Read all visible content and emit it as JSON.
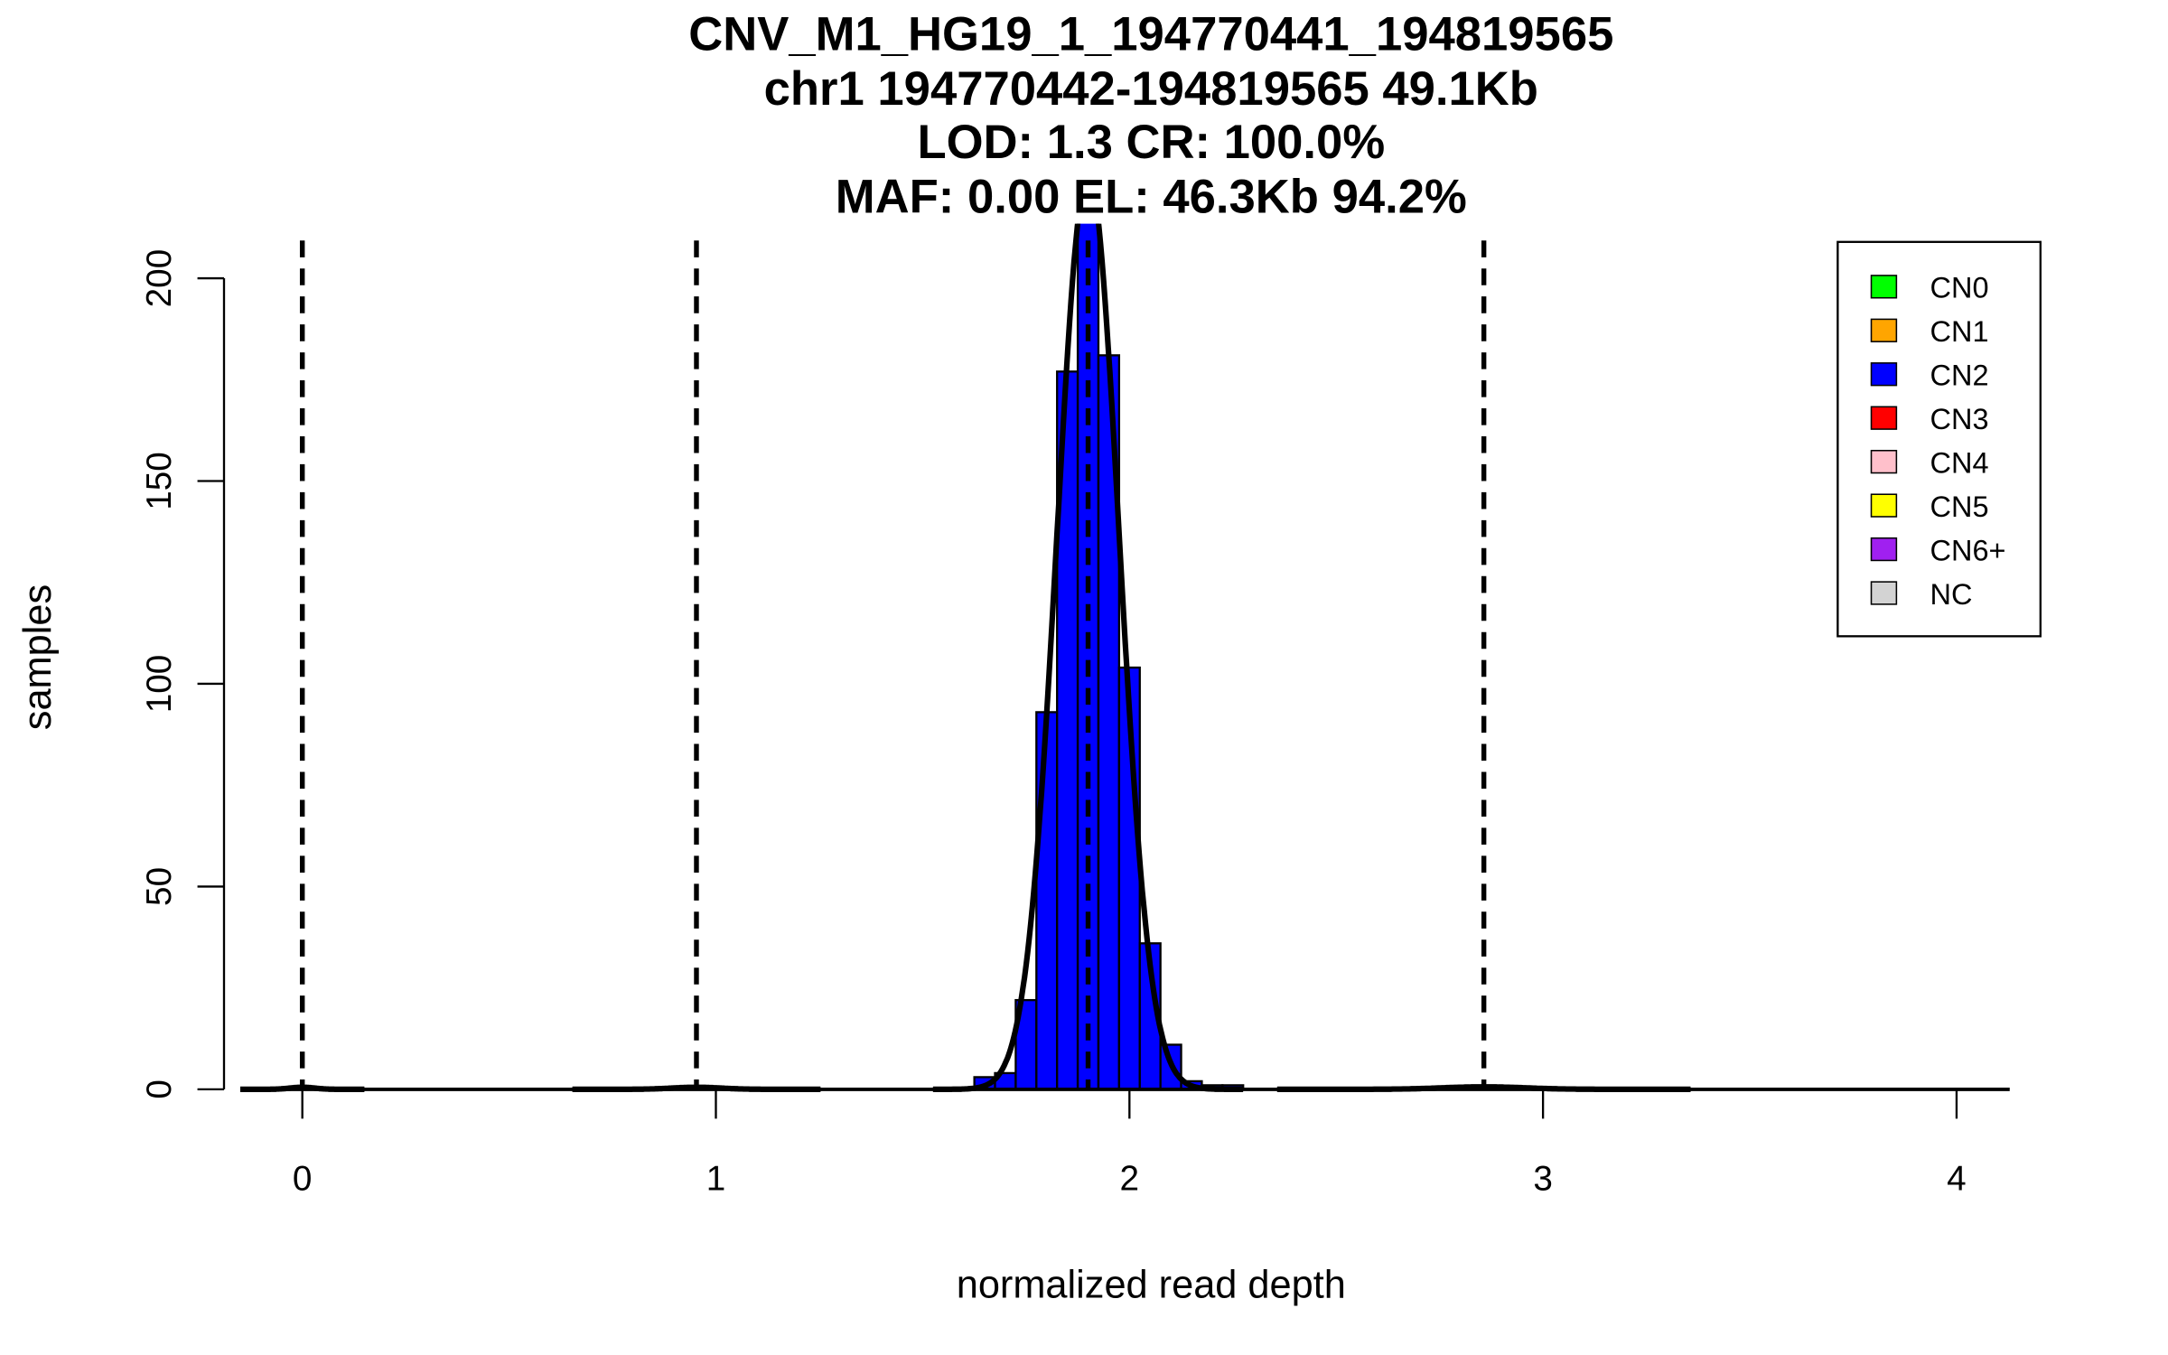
{
  "chart_data": {
    "type": "bar",
    "title_lines": [
      "CNV_M1_HG19_1_194770441_194819565",
      "chr1 194770442-194819565 49.1Kb",
      "LOD: 1.3 CR: 100.0%",
      "MAF: 0.00 EL: 46.3Kb 94.2%"
    ],
    "xlabel": "normalized read depth",
    "ylabel": "samples",
    "xlim": [
      -0.1,
      4.13
    ],
    "ylim": [
      0,
      213
    ],
    "xticks": [
      "0",
      "1",
      "2",
      "3",
      "4"
    ],
    "yticks": [
      "0",
      "50",
      "100",
      "150",
      "200"
    ],
    "bin_width": 0.05,
    "bins": [
      {
        "start": 1.625,
        "value": 3
      },
      {
        "start": 1.675,
        "value": 4
      },
      {
        "start": 1.725,
        "value": 22
      },
      {
        "start": 1.775,
        "value": 93
      },
      {
        "start": 1.825,
        "value": 177
      },
      {
        "start": 1.875,
        "value": 215
      },
      {
        "start": 1.925,
        "value": 181
      },
      {
        "start": 1.975,
        "value": 104
      },
      {
        "start": 2.025,
        "value": 36
      },
      {
        "start": 2.075,
        "value": 11
      },
      {
        "start": 2.125,
        "value": 2
      },
      {
        "start": 2.175,
        "value": 1
      },
      {
        "start": 2.225,
        "value": 1
      }
    ],
    "bar_color": "#0000FF",
    "cutoffs": [
      0,
      0.953,
      1.9,
      2.857
    ],
    "fit_curves": [
      {
        "mean": 0.0,
        "sd": 0.03,
        "peak": 0.5
      },
      {
        "mean": 0.953,
        "sd": 0.06,
        "peak": 0.5
      },
      {
        "mean": 1.9,
        "sd": 0.075,
        "peak": 226
      },
      {
        "mean": 2.857,
        "sd": 0.1,
        "peak": 0.6
      }
    ],
    "legend": {
      "position": "top-right",
      "entries": [
        {
          "label": "CN0",
          "color": "#00FF00"
        },
        {
          "label": "CN1",
          "color": "#FFA500"
        },
        {
          "label": "CN2",
          "color": "#0000FF"
        },
        {
          "label": "CN3",
          "color": "#FF0000"
        },
        {
          "label": "CN4",
          "color": "#FFC0CB"
        },
        {
          "label": "CN5",
          "color": "#FFFF00"
        },
        {
          "label": "CN6+",
          "color": "#A020F0"
        },
        {
          "label": "NC",
          "color": "#D3D3D3"
        }
      ]
    }
  }
}
